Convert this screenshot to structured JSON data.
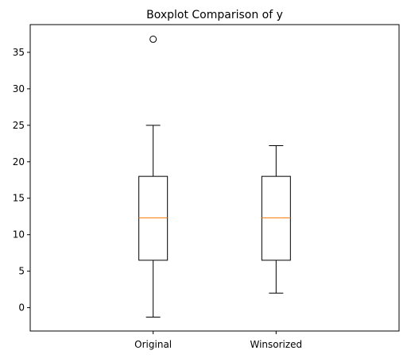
{
  "chart_data": {
    "type": "boxplot",
    "title": "Boxplot Comparison of y",
    "xlabel": "",
    "ylabel": "",
    "categories": [
      "Original",
      "Winsorized"
    ],
    "ylim": [
      -3.2,
      38.8
    ],
    "yticks": [
      0,
      5,
      10,
      15,
      20,
      25,
      30,
      35
    ],
    "grid": false,
    "series": [
      {
        "whisker_low": -1.3,
        "q1": 6.5,
        "median": 12.3,
        "q3": 18.0,
        "whisker_high": 25.0,
        "outliers": [
          36.8
        ]
      },
      {
        "whisker_low": 2.0,
        "q1": 6.5,
        "median": 12.3,
        "q3": 18.0,
        "whisker_high": 22.2,
        "outliers": []
      }
    ],
    "colors": {
      "box": "#000000",
      "median": "#ff7f0e",
      "background": "#ffffff"
    }
  }
}
